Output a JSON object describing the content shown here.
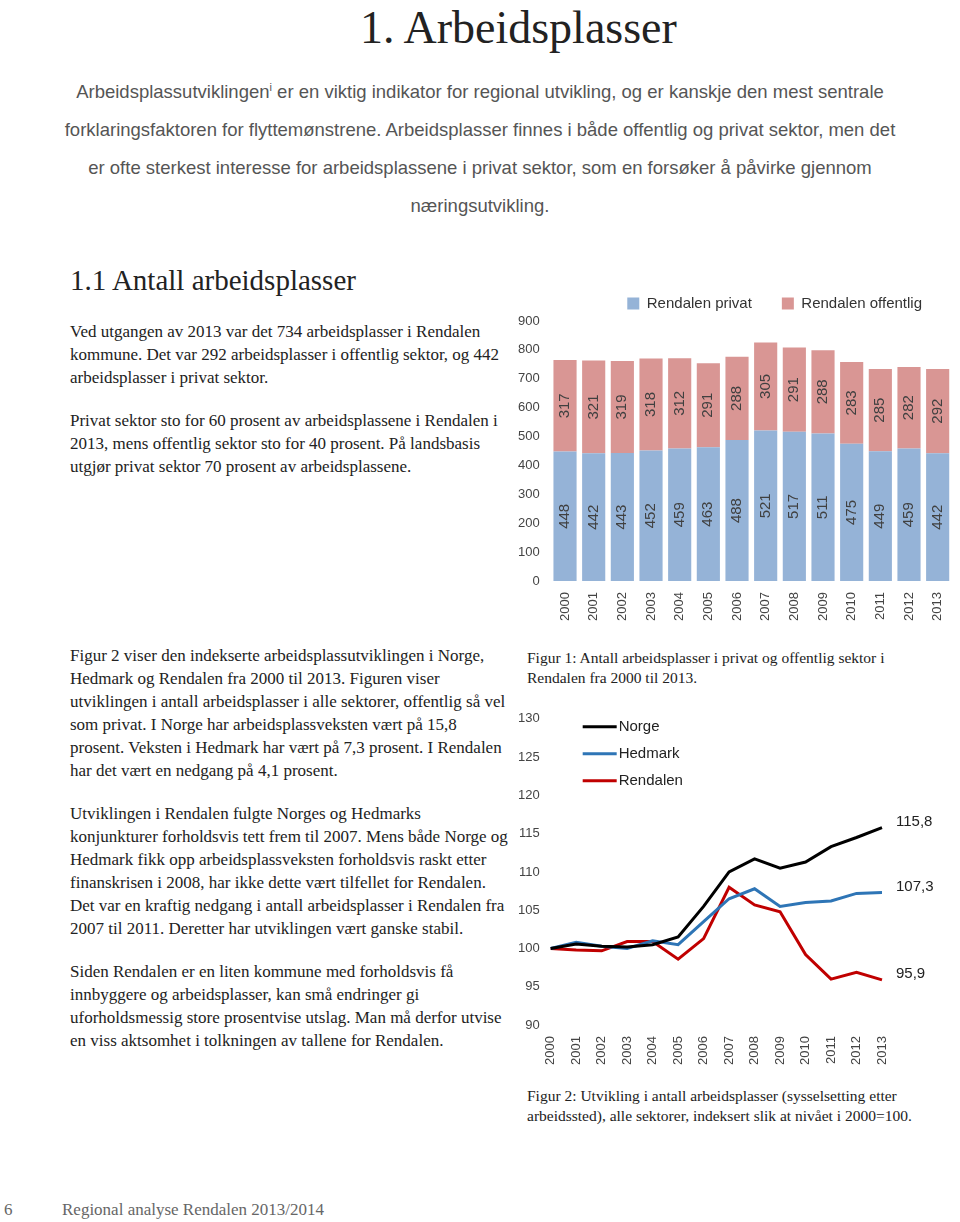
{
  "title": "1. Arbeidsplasser",
  "intro": {
    "lead": "Arbeidsplassutviklingen",
    "note_mark": "i",
    "rest": "er en viktig indikator for regional utvikling, og er kanskje den mest sentrale forklaringsfaktoren for flyttemønstrene. Arbeidsplasser finnes i både offentlig og privat sektor, men det er ofte sterkest interesse for arbeidsplassene i privat sektor, som en forsøker å påvirke gjennom næringsutvikling."
  },
  "section_title": "1.1 Antall arbeidsplasser",
  "paragraphs_top": [
    "Ved utgangen av 2013 var det 734 arbeidsplasser i Rendalen kommune. Det var 292 arbeidsplasser i offentlig sektor, og 442 arbeidsplasser i privat sektor.",
    "Privat sektor sto for 60 prosent av arbeidsplassene i Rendalen i 2013, mens offentlig sektor sto for 40 prosent. På landsbasis utgjør privat sektor 70 prosent av arbeidsplassene."
  ],
  "paragraphs_bottom": [
    "Figur 2 viser den indekserte arbeidsplassutviklingen i Norge, Hedmark og Rendalen fra 2000 til 2013. Figuren viser utviklingen i antall arbeidsplasser i alle sektorer, offentlig så vel som privat. I Norge har arbeidsplassveksten vært på 15,8 prosent. Veksten i Hedmark har vært på 7,3 prosent. I Rendalen har det vært en nedgang på 4,1 prosent.",
    "Utviklingen i Rendalen fulgte Norges og Hedmarks konjunkturer forholdsvis tett frem til 2007. Mens både Norge og Hedmark fikk opp arbeidsplassveksten forholdsvis raskt etter finanskrisen i 2008, har ikke dette vært tilfellet for Rendalen. Det var en kraftig nedgang i antall arbeidsplasser i Rendalen fra 2007 til 2011. Deretter har utviklingen vært ganske stabil.",
    "Siden Rendalen er en liten kommune med forholdsvis få innbyggere og arbeidsplasser, kan små endringer gi uforholdsmessig store prosentvise utslag. Man må derfor utvise en viss aktsomhet i tolkningen av tallene for Rendalen."
  ],
  "captions": [
    "Figur 1: Antall arbeidsplasser i privat og offentlig sektor i Rendalen fra 2000 til 2013.",
    "Figur 2: Utvikling i antall arbeidsplasser (sysselsetting etter arbeidssted), alle sektorer, indeksert slik at nivået i 2000=100."
  ],
  "chart_data": [
    {
      "type": "bar",
      "stacked": true,
      "data_labels": true,
      "grid": false,
      "legend": "top",
      "categories": [
        "2000",
        "2001",
        "2002",
        "2003",
        "2004",
        "2005",
        "2006",
        "2007",
        "2008",
        "2009",
        "2010",
        "2011",
        "2012",
        "2013"
      ],
      "series": [
        {
          "name": "Rendalen privat",
          "color": "#95b3d7",
          "values": [
            448,
            442,
            443,
            452,
            459,
            463,
            488,
            521,
            517,
            511,
            475,
            449,
            459,
            442
          ]
        },
        {
          "name": "Rendalen offentlig",
          "color": "#d99694",
          "values": [
            317,
            321,
            319,
            318,
            312,
            291,
            288,
            305,
            291,
            288,
            283,
            285,
            282,
            292
          ]
        }
      ],
      "ylim": [
        0,
        900
      ],
      "yticks": [
        0,
        100,
        200,
        300,
        400,
        500,
        600,
        700,
        800,
        900
      ]
    },
    {
      "type": "line",
      "data_labels": true,
      "grid": false,
      "legend": "upper left",
      "categories": [
        "2000",
        "2001",
        "2002",
        "2003",
        "2004",
        "2005",
        "2006",
        "2007",
        "2008",
        "2009",
        "2010",
        "2011",
        "2012",
        "2013"
      ],
      "series": [
        {
          "name": "Norge",
          "color": "#000000",
          "values": [
            100,
            100.6,
            100.3,
            100.2,
            100.5,
            101.5,
            105.5,
            110,
            111.7,
            110.5,
            111.3,
            113.3,
            114.5,
            115.8
          ],
          "value_labels": [
            null,
            null,
            null,
            null,
            null,
            null,
            null,
            null,
            null,
            null,
            null,
            null,
            null,
            "115,8"
          ]
        },
        {
          "name": "Hedmark",
          "color": "#2e75b6",
          "values": [
            100,
            100.8,
            100.3,
            100,
            101,
            100.5,
            103.5,
            106.5,
            107.8,
            105.5,
            106,
            106.2,
            107.2,
            107.3
          ],
          "value_labels": [
            null,
            null,
            null,
            null,
            null,
            null,
            null,
            null,
            null,
            null,
            null,
            null,
            null,
            "107,3"
          ]
        },
        {
          "name": "Rendalen",
          "color": "#c00000",
          "values": [
            100,
            99.8,
            99.7,
            100.9,
            100.9,
            98.6,
            101.3,
            108,
            105.7,
            104.8,
            99.2,
            96,
            96.9,
            95.9
          ],
          "value_labels": [
            null,
            null,
            null,
            null,
            null,
            null,
            null,
            null,
            null,
            null,
            null,
            null,
            null,
            "95,9"
          ]
        }
      ],
      "ylim": [
        90,
        130
      ],
      "yticks": [
        90,
        95,
        100,
        105,
        110,
        115,
        120,
        125,
        130
      ]
    }
  ],
  "footer": {
    "page": "6",
    "text": "Regional analyse Rendalen 2013/2014"
  }
}
